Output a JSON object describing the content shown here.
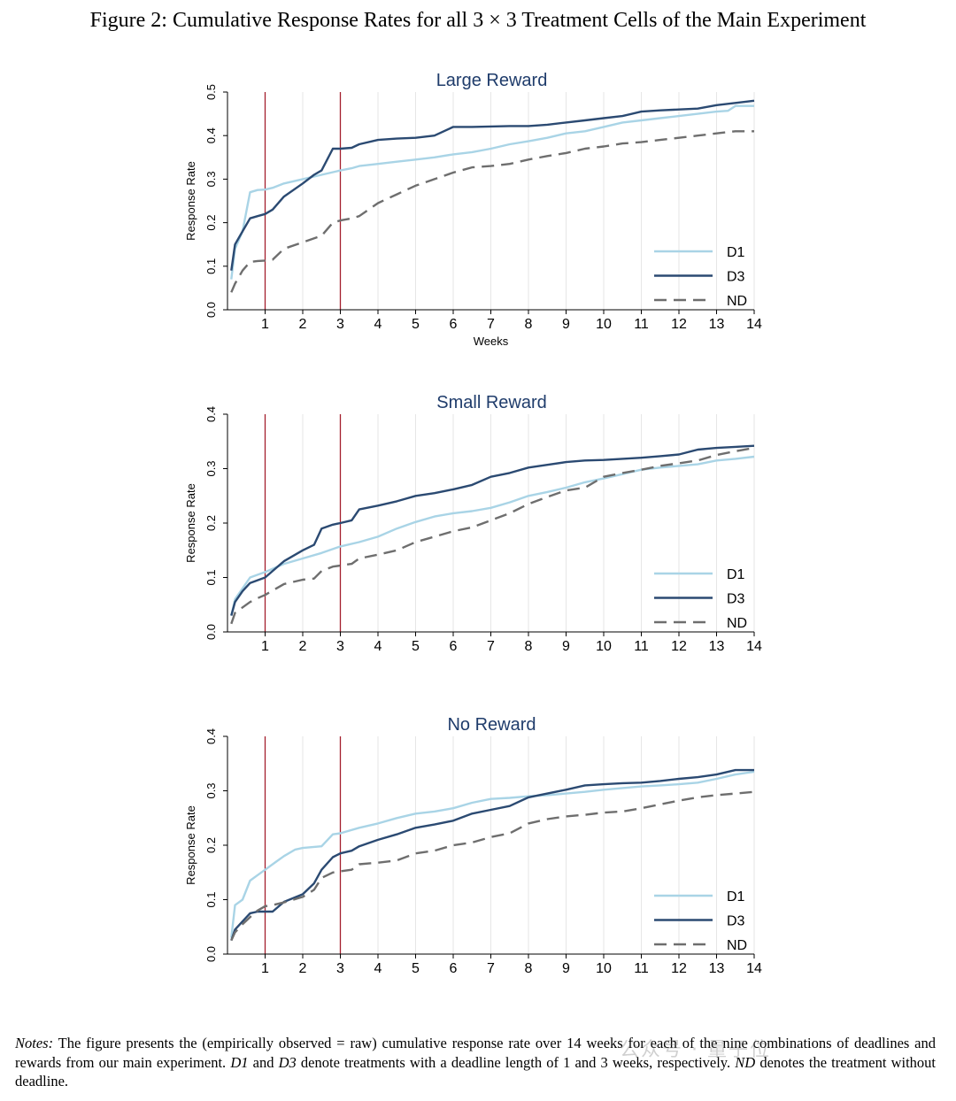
{
  "figure": {
    "title": "Figure 2: Cumulative Response Rates for all 3 × 3 Treatment Cells of the Main Experiment",
    "notes_label": "Notes:",
    "notes_text_1": " The figure presents the (empirically observed = raw) cumulative response rate over 14 weeks for each of the nine combinations of deadlines and rewards from our main experiment. ",
    "notes_em_1": "D1",
    "notes_text_2": " and ",
    "notes_em_2": "D3",
    "notes_text_3": " denote treatments with a deadline length of 1 and 3 weeks, respectively. ",
    "notes_em_3": "ND",
    "notes_text_4": " denotes the treatment without deadline.",
    "watermark": "公众号 · 量子位"
  },
  "colors": {
    "d1": "#a9d4e6",
    "d3": "#2b4a72",
    "nd": "#6e6e6e",
    "deadline": "#a31e2d",
    "title": "#1f3c6b"
  },
  "chart_data": [
    {
      "type": "line",
      "title": "Large Reward",
      "xlabel": "Weeks",
      "ylabel": "Response Rate",
      "xlim": [
        0,
        14
      ],
      "ylim": [
        0,
        0.5
      ],
      "xticks": [
        1,
        2,
        3,
        4,
        5,
        6,
        7,
        8,
        9,
        10,
        11,
        12,
        13,
        14
      ],
      "yticks": [
        0.0,
        0.1,
        0.2,
        0.3,
        0.4,
        0.5
      ],
      "ytick_labels": [
        "0.0",
        "0.1",
        "0.2",
        "0.3",
        "0.4",
        "0.5"
      ],
      "deadline_lines": [
        1,
        3
      ],
      "legend": "bottom-right",
      "series": [
        {
          "name": "D1",
          "x": [
            0.1,
            0.2,
            0.4,
            0.6,
            0.8,
            1.0,
            1.2,
            1.5,
            2.0,
            2.5,
            3.0,
            3.3,
            3.5,
            4.0,
            4.5,
            5.0,
            5.5,
            6.0,
            6.5,
            7.0,
            7.5,
            8.0,
            8.5,
            9.0,
            9.5,
            10.0,
            10.5,
            11.0,
            11.5,
            12.0,
            12.5,
            13.0,
            13.3,
            13.5,
            14.0
          ],
          "y": [
            0.07,
            0.14,
            0.18,
            0.27,
            0.275,
            0.276,
            0.28,
            0.29,
            0.3,
            0.31,
            0.32,
            0.325,
            0.33,
            0.335,
            0.34,
            0.345,
            0.35,
            0.357,
            0.362,
            0.37,
            0.38,
            0.387,
            0.395,
            0.405,
            0.41,
            0.42,
            0.43,
            0.435,
            0.44,
            0.445,
            0.45,
            0.455,
            0.457,
            0.468,
            0.468
          ]
        },
        {
          "name": "D3",
          "x": [
            0.1,
            0.2,
            0.4,
            0.6,
            0.8,
            1.0,
            1.2,
            1.5,
            2.0,
            2.3,
            2.5,
            2.8,
            3.0,
            3.3,
            3.5,
            4.0,
            4.5,
            5.0,
            5.5,
            6.0,
            6.5,
            7.0,
            7.5,
            8.0,
            8.5,
            9.0,
            9.5,
            10.0,
            10.5,
            11.0,
            11.5,
            12.0,
            12.5,
            13.0,
            13.5,
            14.0
          ],
          "y": [
            0.09,
            0.15,
            0.18,
            0.21,
            0.215,
            0.22,
            0.23,
            0.26,
            0.29,
            0.31,
            0.32,
            0.37,
            0.37,
            0.372,
            0.38,
            0.39,
            0.393,
            0.395,
            0.4,
            0.42,
            0.42,
            0.421,
            0.422,
            0.422,
            0.425,
            0.43,
            0.435,
            0.44,
            0.445,
            0.455,
            0.458,
            0.46,
            0.462,
            0.47,
            0.475,
            0.48
          ]
        },
        {
          "name": "ND",
          "x": [
            0.1,
            0.2,
            0.4,
            0.6,
            0.8,
            1.0,
            1.2,
            1.5,
            2.0,
            2.5,
            2.8,
            3.0,
            3.3,
            3.5,
            4.0,
            4.5,
            5.0,
            5.5,
            6.0,
            6.5,
            7.0,
            7.5,
            8.0,
            8.5,
            9.0,
            9.5,
            10.0,
            10.5,
            11.0,
            11.5,
            12.0,
            12.5,
            13.0,
            13.5,
            14.0
          ],
          "y": [
            0.04,
            0.06,
            0.09,
            0.11,
            0.112,
            0.113,
            0.115,
            0.14,
            0.155,
            0.17,
            0.2,
            0.205,
            0.21,
            0.215,
            0.245,
            0.265,
            0.285,
            0.3,
            0.315,
            0.327,
            0.33,
            0.335,
            0.345,
            0.353,
            0.36,
            0.37,
            0.375,
            0.382,
            0.385,
            0.39,
            0.395,
            0.4,
            0.405,
            0.41,
            0.41
          ]
        }
      ]
    },
    {
      "type": "line",
      "title": "Small Reward",
      "xlabel": "",
      "ylabel": "Response Rate",
      "xlim": [
        0,
        14
      ],
      "ylim": [
        0,
        0.4
      ],
      "xticks": [
        1,
        2,
        3,
        4,
        5,
        6,
        7,
        8,
        9,
        10,
        11,
        12,
        13,
        14
      ],
      "yticks": [
        0.0,
        0.1,
        0.2,
        0.3,
        0.4
      ],
      "ytick_labels": [
        "0.0",
        "0.1",
        "0.2",
        "0.3",
        "0.4"
      ],
      "deadline_lines": [
        1,
        3
      ],
      "legend": "bottom-right",
      "series": [
        {
          "name": "D1",
          "x": [
            0.1,
            0.2,
            0.4,
            0.6,
            0.8,
            1.0,
            1.5,
            2.0,
            2.5,
            3.0,
            3.5,
            4.0,
            4.5,
            5.0,
            5.5,
            6.0,
            6.5,
            7.0,
            7.5,
            8.0,
            8.5,
            9.0,
            9.5,
            10.0,
            10.5,
            11.0,
            11.5,
            12.0,
            12.5,
            13.0,
            13.5,
            14.0
          ],
          "y": [
            0.03,
            0.06,
            0.08,
            0.1,
            0.105,
            0.11,
            0.125,
            0.135,
            0.145,
            0.157,
            0.165,
            0.175,
            0.19,
            0.202,
            0.212,
            0.218,
            0.222,
            0.228,
            0.238,
            0.25,
            0.257,
            0.265,
            0.275,
            0.282,
            0.29,
            0.298,
            0.302,
            0.305,
            0.308,
            0.315,
            0.318,
            0.322
          ]
        },
        {
          "name": "D3",
          "x": [
            0.1,
            0.2,
            0.4,
            0.6,
            0.8,
            1.0,
            1.5,
            2.0,
            2.3,
            2.5,
            2.8,
            3.0,
            3.3,
            3.5,
            4.0,
            4.5,
            5.0,
            5.5,
            6.0,
            6.5,
            7.0,
            7.5,
            8.0,
            8.5,
            9.0,
            9.5,
            10.0,
            10.5,
            11.0,
            11.5,
            12.0,
            12.5,
            13.0,
            13.5,
            14.0
          ],
          "y": [
            0.03,
            0.055,
            0.075,
            0.09,
            0.095,
            0.1,
            0.13,
            0.15,
            0.16,
            0.19,
            0.197,
            0.2,
            0.205,
            0.225,
            0.232,
            0.24,
            0.25,
            0.255,
            0.262,
            0.27,
            0.285,
            0.292,
            0.302,
            0.307,
            0.312,
            0.315,
            0.316,
            0.318,
            0.32,
            0.323,
            0.326,
            0.335,
            0.338,
            0.34,
            0.342
          ]
        },
        {
          "name": "ND",
          "x": [
            0.1,
            0.2,
            0.4,
            0.6,
            0.8,
            1.0,
            1.5,
            2.0,
            2.3,
            2.5,
            2.8,
            3.0,
            3.3,
            3.5,
            4.0,
            4.5,
            5.0,
            5.5,
            6.0,
            6.5,
            7.0,
            7.5,
            8.0,
            8.5,
            9.0,
            9.5,
            10.0,
            10.5,
            11.0,
            11.5,
            12.0,
            12.5,
            13.0,
            13.5,
            14.0
          ],
          "y": [
            0.015,
            0.035,
            0.045,
            0.055,
            0.062,
            0.068,
            0.088,
            0.096,
            0.098,
            0.112,
            0.12,
            0.122,
            0.125,
            0.135,
            0.142,
            0.15,
            0.165,
            0.175,
            0.185,
            0.192,
            0.205,
            0.218,
            0.235,
            0.248,
            0.26,
            0.265,
            0.285,
            0.292,
            0.298,
            0.305,
            0.31,
            0.315,
            0.325,
            0.332,
            0.338
          ]
        }
      ]
    },
    {
      "type": "line",
      "title": "No Reward",
      "xlabel": "",
      "ylabel": "Response Rate",
      "xlim": [
        0,
        14
      ],
      "ylim": [
        0,
        0.4
      ],
      "xticks": [
        1,
        2,
        3,
        4,
        5,
        6,
        7,
        8,
        9,
        10,
        11,
        12,
        13,
        14
      ],
      "yticks": [
        0.0,
        0.1,
        0.2,
        0.3,
        0.4
      ],
      "ytick_labels": [
        "0.0",
        "0.1",
        "0.2",
        "0.3",
        "0.4"
      ],
      "deadline_lines": [
        1,
        3
      ],
      "legend": "bottom-right",
      "series": [
        {
          "name": "D1",
          "x": [
            0.1,
            0.2,
            0.4,
            0.6,
            0.8,
            1.0,
            1.3,
            1.5,
            1.8,
            2.0,
            2.5,
            2.8,
            3.0,
            3.5,
            4.0,
            4.5,
            5.0,
            5.5,
            6.0,
            6.5,
            7.0,
            7.5,
            8.0,
            8.5,
            9.0,
            9.5,
            10.0,
            10.5,
            11.0,
            11.5,
            12.0,
            12.5,
            13.0,
            13.5,
            14.0
          ],
          "y": [
            0.03,
            0.09,
            0.1,
            0.135,
            0.145,
            0.155,
            0.17,
            0.18,
            0.192,
            0.195,
            0.198,
            0.22,
            0.222,
            0.232,
            0.24,
            0.25,
            0.258,
            0.262,
            0.268,
            0.278,
            0.285,
            0.287,
            0.29,
            0.292,
            0.295,
            0.298,
            0.302,
            0.305,
            0.308,
            0.31,
            0.312,
            0.315,
            0.322,
            0.33,
            0.335
          ]
        },
        {
          "name": "D3",
          "x": [
            0.1,
            0.2,
            0.4,
            0.6,
            0.8,
            1.0,
            1.2,
            1.5,
            2.0,
            2.3,
            2.5,
            2.8,
            3.0,
            3.3,
            3.5,
            4.0,
            4.5,
            5.0,
            5.5,
            6.0,
            6.5,
            7.0,
            7.5,
            8.0,
            8.5,
            9.0,
            9.5,
            10.0,
            10.5,
            11.0,
            11.5,
            12.0,
            12.5,
            13.0,
            13.5,
            14.0
          ],
          "y": [
            0.025,
            0.045,
            0.06,
            0.075,
            0.078,
            0.078,
            0.078,
            0.096,
            0.11,
            0.13,
            0.155,
            0.178,
            0.185,
            0.19,
            0.198,
            0.21,
            0.22,
            0.232,
            0.238,
            0.245,
            0.258,
            0.265,
            0.272,
            0.288,
            0.295,
            0.302,
            0.31,
            0.312,
            0.314,
            0.315,
            0.318,
            0.322,
            0.325,
            0.33,
            0.338,
            0.338
          ]
        },
        {
          "name": "ND",
          "x": [
            0.1,
            0.2,
            0.4,
            0.6,
            0.8,
            1.0,
            1.2,
            1.5,
            2.0,
            2.3,
            2.5,
            2.8,
            3.0,
            3.3,
            3.5,
            4.0,
            4.5,
            5.0,
            5.5,
            6.0,
            6.5,
            7.0,
            7.5,
            8.0,
            8.5,
            9.0,
            9.5,
            10.0,
            10.5,
            11.0,
            11.5,
            12.0,
            12.5,
            13.0,
            13.5,
            14.0
          ],
          "y": [
            0.025,
            0.04,
            0.055,
            0.068,
            0.08,
            0.088,
            0.09,
            0.095,
            0.105,
            0.118,
            0.14,
            0.15,
            0.152,
            0.155,
            0.165,
            0.168,
            0.172,
            0.185,
            0.19,
            0.2,
            0.205,
            0.215,
            0.222,
            0.24,
            0.248,
            0.253,
            0.256,
            0.26,
            0.262,
            0.268,
            0.275,
            0.282,
            0.288,
            0.292,
            0.295,
            0.298
          ]
        }
      ]
    }
  ]
}
